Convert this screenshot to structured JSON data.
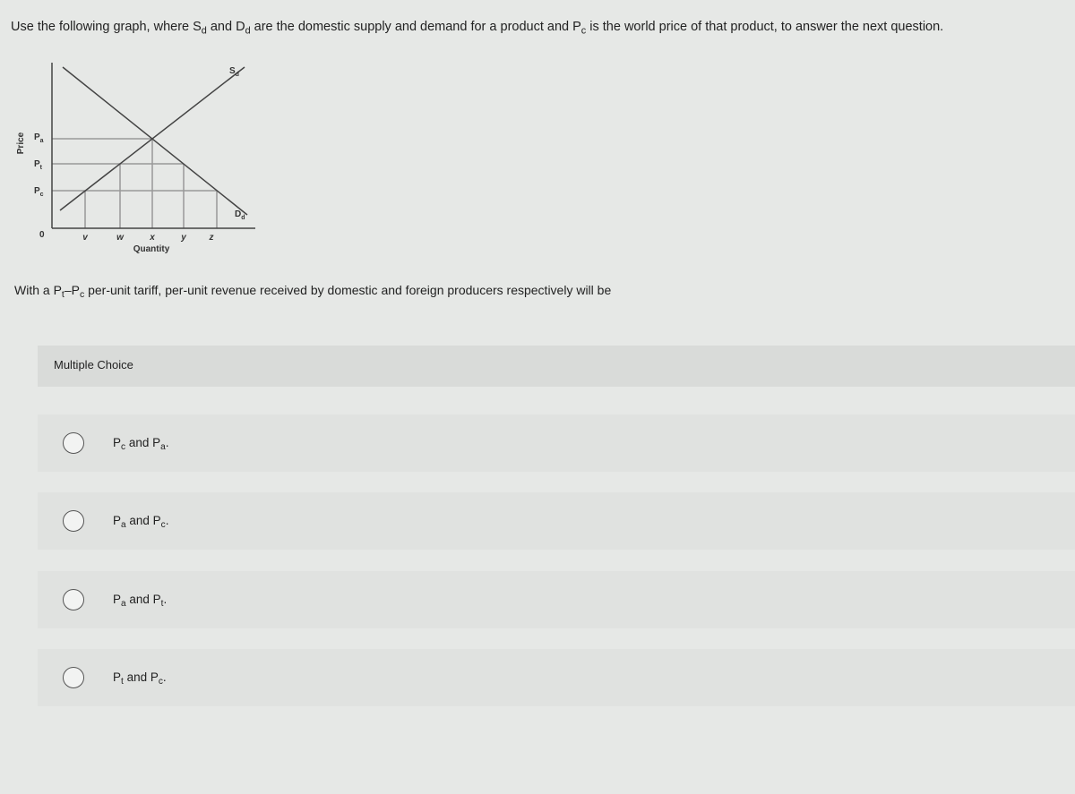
{
  "question": {
    "parts": [
      "Use the following graph, where S",
      "d",
      " and D",
      "d",
      " are the domestic supply and demand for a product and P",
      "c",
      " is the world price of that product, to answer the next question."
    ]
  },
  "graph": {
    "y_axis_label": "Price",
    "x_axis_label": "Quantity",
    "origin": "0",
    "price_labels": [
      {
        "base": "P",
        "sub": "a"
      },
      {
        "base": "P",
        "sub": "t"
      },
      {
        "base": "P",
        "sub": "c"
      }
    ],
    "quantity_labels": [
      "v",
      "w",
      "x",
      "y",
      "z"
    ],
    "supply_label": {
      "base": "S",
      "sub": "d"
    },
    "demand_label": {
      "base": "D",
      "sub": "d"
    }
  },
  "prompt": {
    "parts": [
      "With a P",
      "t",
      "–P",
      "c",
      " per-unit tariff, per-unit revenue received by domestic and foreign producers respectively will be"
    ]
  },
  "multiple_choice": {
    "header": "Multiple Choice",
    "options": [
      {
        "parts": [
          "P",
          "c",
          " and P",
          "a",
          "."
        ]
      },
      {
        "parts": [
          "P",
          "a",
          " and P",
          "c",
          "."
        ]
      },
      {
        "parts": [
          "P",
          "a",
          " and P",
          "t",
          "."
        ]
      },
      {
        "parts": [
          "P",
          "t",
          " and P",
          "c",
          "."
        ]
      }
    ]
  }
}
